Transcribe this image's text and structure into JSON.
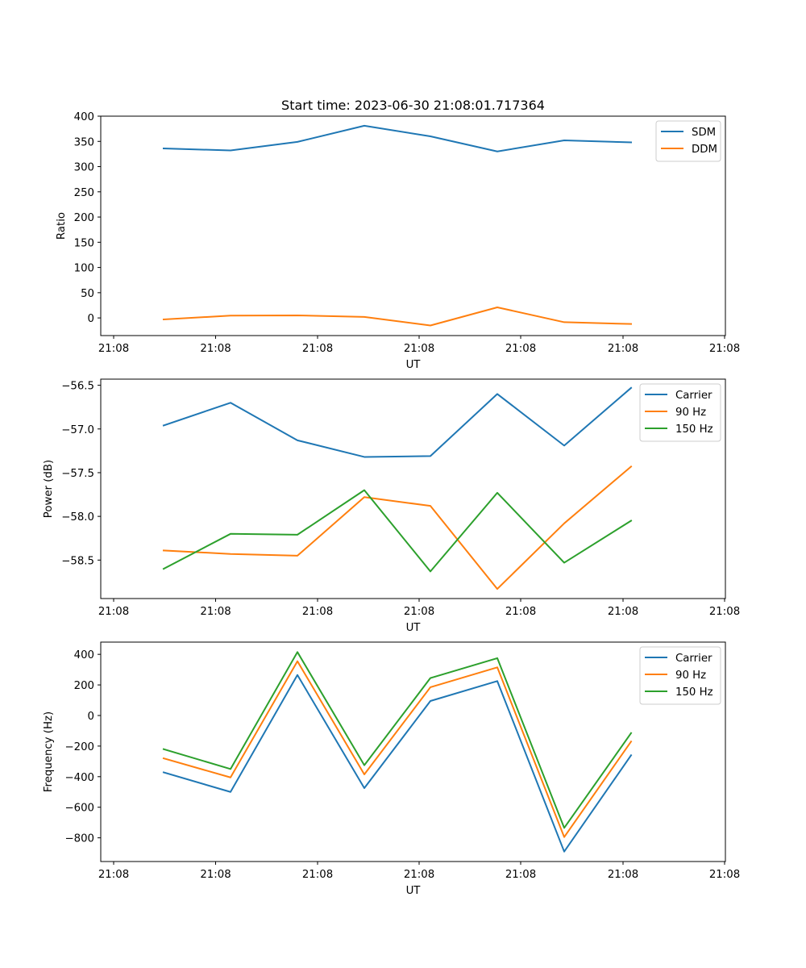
{
  "figure": {
    "title": "Start time: 2023-06-30 21:08:01.717364"
  },
  "chart_data": [
    {
      "type": "line",
      "title": "Start time: 2023-06-30 21:08:01.717364",
      "xlabel": "UT",
      "ylabel": "Ratio",
      "x_tick_labels": [
        "21:08",
        "21:08",
        "21:08",
        "21:08",
        "21:08",
        "21:08",
        "21:08"
      ],
      "y_ticks": [
        0,
        50,
        100,
        150,
        200,
        250,
        300,
        350,
        400
      ],
      "ylim": [
        -35,
        400
      ],
      "legend": "top-right",
      "grid": false,
      "series": [
        {
          "name": "SDM",
          "color": "#1f77b4",
          "values": [
            336,
            332,
            349,
            381,
            360,
            330,
            352,
            348
          ]
        },
        {
          "name": "DDM",
          "color": "#ff7f0e",
          "values": [
            -3,
            4.5,
            5,
            2,
            -15,
            21,
            -8.5,
            -12
          ]
        }
      ]
    },
    {
      "type": "line",
      "title": "",
      "xlabel": "UT",
      "ylabel": "Power (dB)",
      "x_tick_labels": [
        "21:08",
        "21:08",
        "21:08",
        "21:08",
        "21:08",
        "21:08",
        "21:08"
      ],
      "y_ticks": [
        -58.5,
        -58.0,
        -57.5,
        -57.0,
        -56.5
      ],
      "y_tick_labels": [
        "−58.5",
        "−58.0",
        "−57.5",
        "−57.0",
        "−56.5"
      ],
      "ylim": [
        -58.94,
        -56.43
      ],
      "legend": "top-right",
      "grid": false,
      "series": [
        {
          "name": "Carrier",
          "color": "#1f77b4",
          "values": [
            -56.96,
            -56.7,
            -57.13,
            -57.32,
            -57.31,
            -56.6,
            -57.19,
            -56.53
          ]
        },
        {
          "name": "90 Hz",
          "color": "#ff7f0e",
          "values": [
            -58.39,
            -58.43,
            -58.45,
            -57.78,
            -57.88,
            -58.83,
            -58.08,
            -57.43
          ]
        },
        {
          "name": "150 Hz",
          "color": "#2ca02c",
          "values": [
            -58.6,
            -58.2,
            -58.21,
            -57.7,
            -58.63,
            -57.73,
            -58.53,
            -58.05
          ]
        }
      ]
    },
    {
      "type": "line",
      "title": "",
      "xlabel": "UT",
      "ylabel": "Frequency (Hz)",
      "x_tick_labels": [
        "21:08",
        "21:08",
        "21:08",
        "21:08",
        "21:08",
        "21:08",
        "21:08"
      ],
      "y_ticks": [
        -800,
        -600,
        -400,
        -200,
        0,
        200,
        400
      ],
      "y_tick_labels": [
        "−800",
        "−600",
        "−400",
        "−200",
        "0",
        "200",
        "400"
      ],
      "ylim": [
        -955,
        480
      ],
      "legend": "top-right",
      "grid": false,
      "series": [
        {
          "name": "Carrier",
          "color": "#1f77b4",
          "values": [
            -372,
            -500,
            265,
            -475,
            95,
            225,
            -890,
            -260
          ]
        },
        {
          "name": "90 Hz",
          "color": "#ff7f0e",
          "values": [
            -280,
            -405,
            355,
            -385,
            185,
            315,
            -795,
            -170
          ]
        },
        {
          "name": "150 Hz",
          "color": "#2ca02c",
          "values": [
            -220,
            -350,
            415,
            -325,
            245,
            375,
            -735,
            -115
          ]
        }
      ]
    }
  ]
}
